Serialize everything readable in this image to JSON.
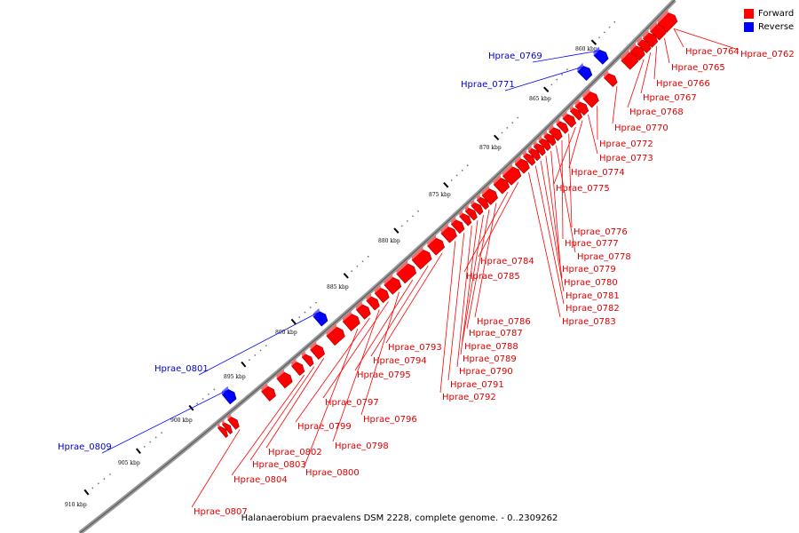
{
  "legend": {
    "forward_label": "Forward",
    "reverse_label": "Reverse",
    "forward_color": "#ff0000",
    "reverse_color": "#0000ff"
  },
  "footer_text": "Halanaerobium praevalens DSM 2228, complete genome. - 0..2309262",
  "ticks": [
    "860 kbp",
    "865 kbp",
    "870 kbp",
    "875 kbp",
    "880 kbp",
    "885 kbp",
    "890 kbp",
    "895 kbp",
    "900 kbp",
    "905 kbp",
    "910 kbp"
  ],
  "forward_labels": [
    "Hprae_0762",
    "Hprae_0764",
    "Hprae_0765",
    "Hprae_0766",
    "Hprae_0767",
    "Hprae_0768",
    "Hprae_0770",
    "Hprae_0772",
    "Hprae_0773",
    "Hprae_0774",
    "Hprae_0775",
    "Hprae_0776",
    "Hprae_0777",
    "Hprae_0778",
    "Hprae_0779",
    "Hprae_0780",
    "Hprae_0781",
    "Hprae_0782",
    "Hprae_0783",
    "Hprae_0784",
    "Hprae_0785",
    "Hprae_0786",
    "Hprae_0787",
    "Hprae_0788",
    "Hprae_0789",
    "Hprae_0790",
    "Hprae_0791",
    "Hprae_0792",
    "Hprae_0793",
    "Hprae_0794",
    "Hprae_0795",
    "Hprae_0796",
    "Hprae_0797",
    "Hprae_0798",
    "Hprae_0799",
    "Hprae_0800",
    "Hprae_0802",
    "Hprae_0803",
    "Hprae_0804",
    "Hprae_0807"
  ],
  "reverse_labels": [
    "Hprae_0769",
    "Hprae_0771",
    "Hprae_0801",
    "Hprae_0809"
  ]
}
